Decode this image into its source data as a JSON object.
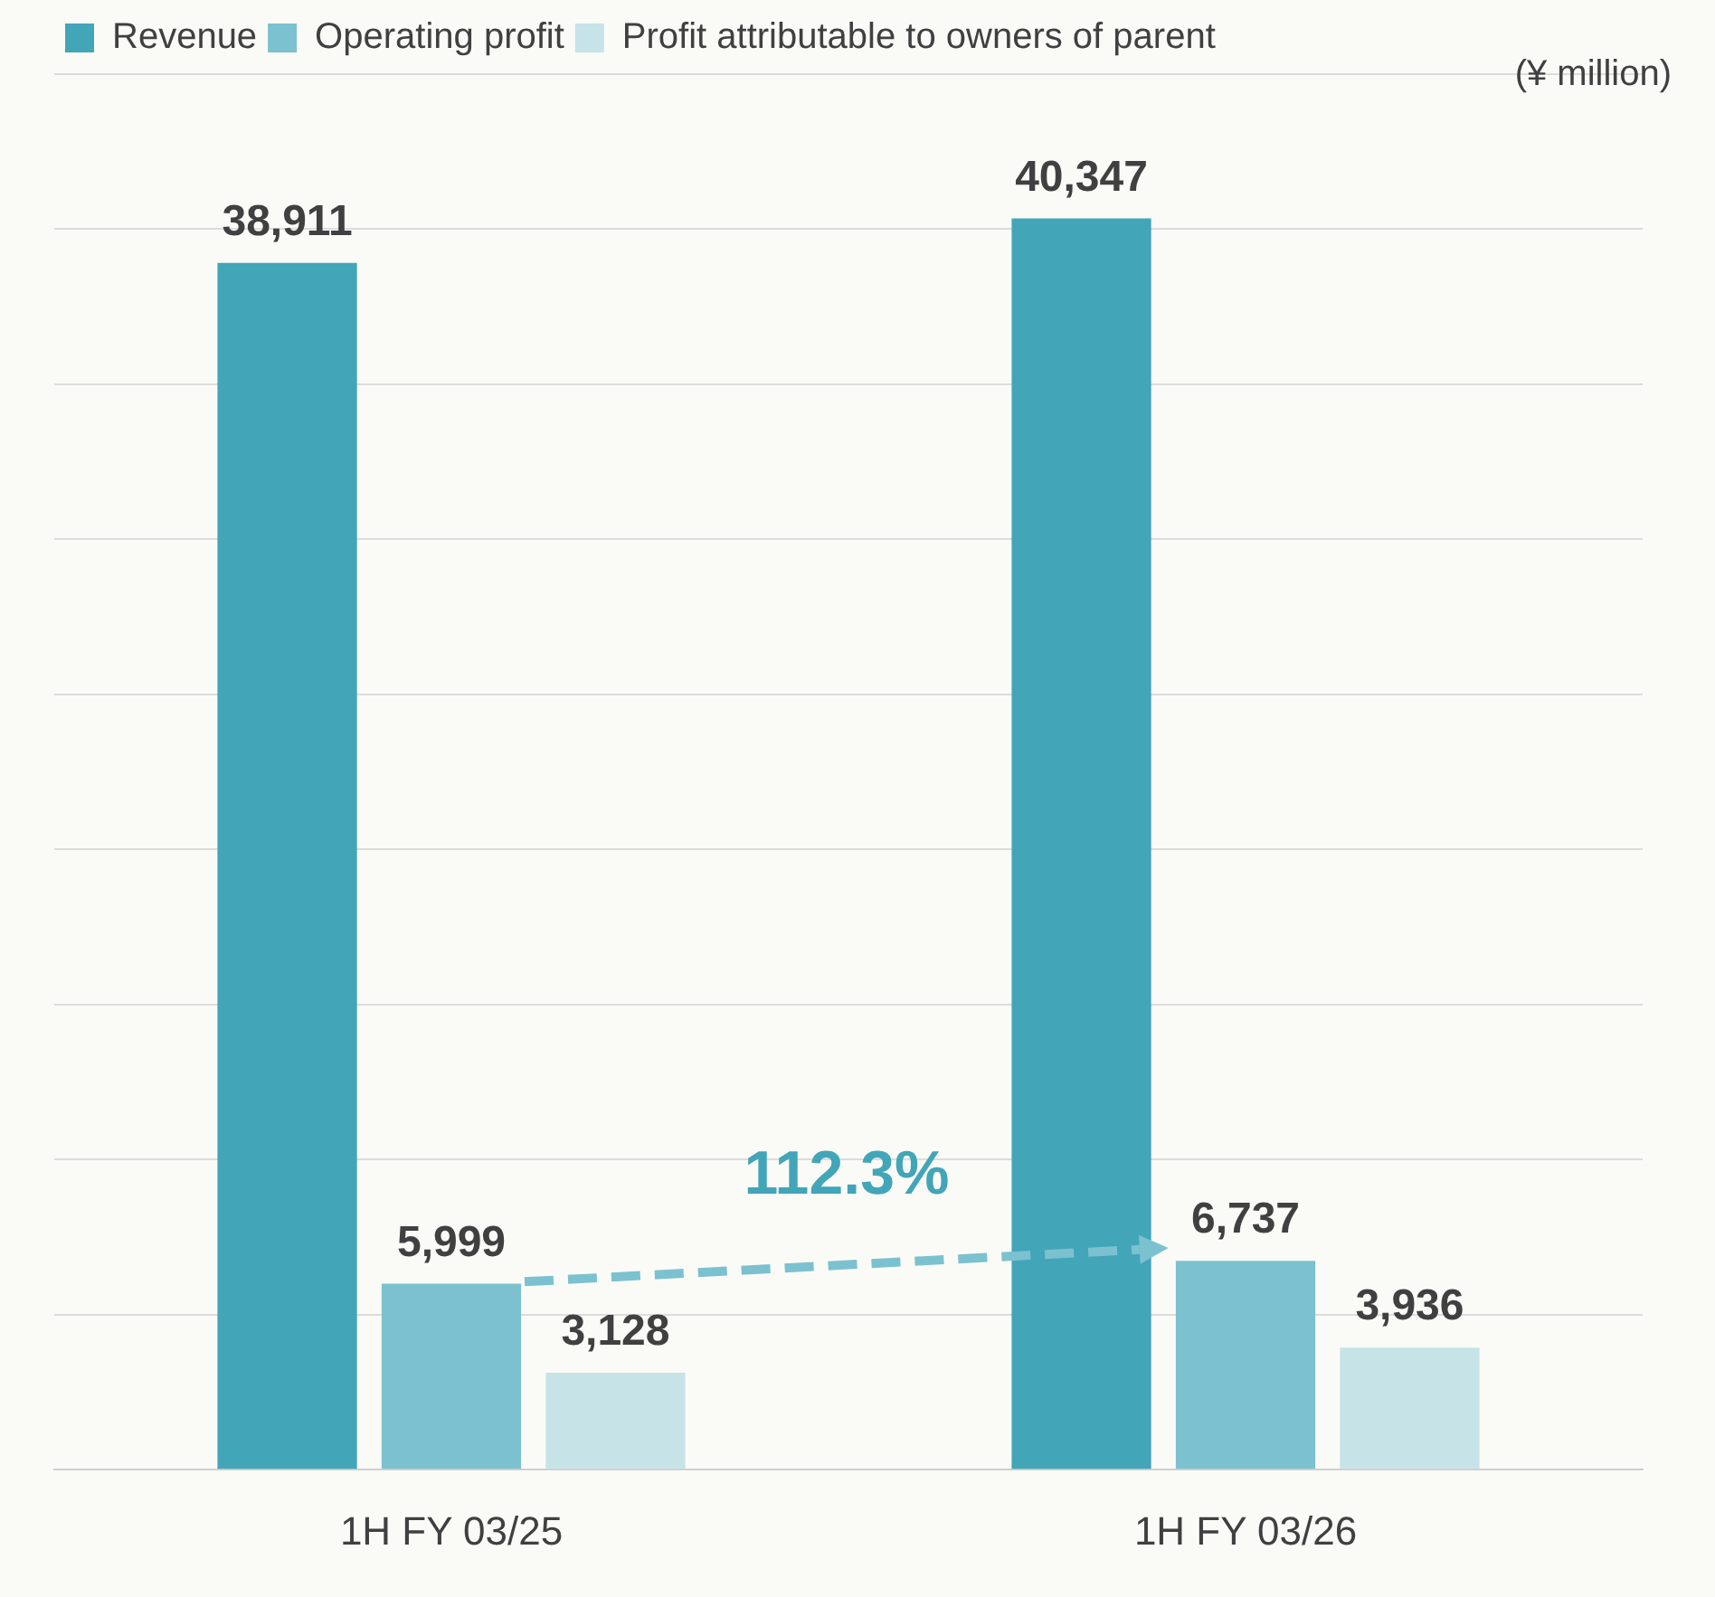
{
  "chart_data": {
    "type": "bar",
    "ylabel": "(¥ million)",
    "categories": [
      "1H FY 03/25",
      "1H FY 03/26"
    ],
    "series": [
      {
        "name": "Revenue",
        "color": "#42a5b8",
        "values": [
          38911,
          40347
        ],
        "value_labels": [
          "38,911",
          "40,347"
        ]
      },
      {
        "name": "Operating profit",
        "color": "#7cc1d0",
        "values": [
          5999,
          6737
        ],
        "value_labels": [
          "5,999",
          "6,737"
        ]
      },
      {
        "name": "Profit attributable to owners of parent",
        "color": "#c6e3e8",
        "values": [
          3128,
          3936
        ],
        "value_labels": [
          "3,128",
          "3,936"
        ]
      }
    ],
    "grid": "y",
    "tick_labels": "x",
    "legend": "top left",
    "annotations": [
      "112.3%"
    ]
  }
}
